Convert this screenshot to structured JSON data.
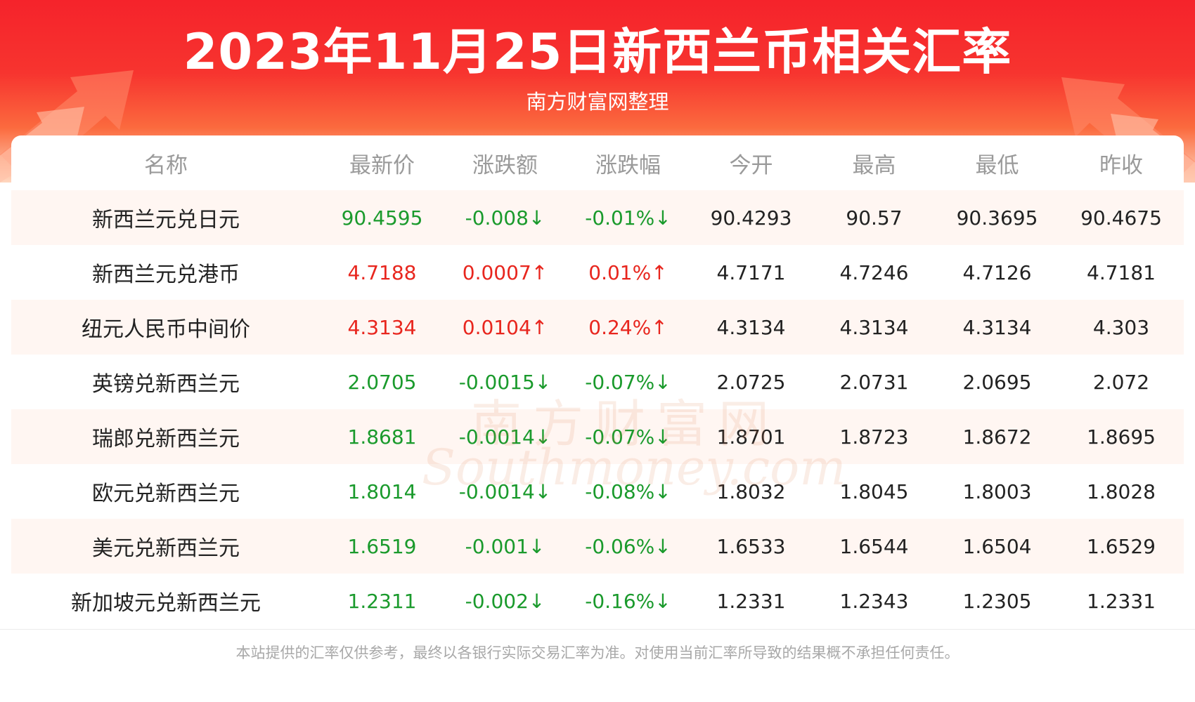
{
  "header": {
    "title": "2023年11月25日新西兰币相关汇率",
    "subtitle": "南方财富网整理"
  },
  "table": {
    "columns": [
      "名称",
      "最新价",
      "涨跌额",
      "涨跌幅",
      "今开",
      "最高",
      "最低",
      "昨收"
    ],
    "rows": [
      {
        "name": "新西兰元兑日元",
        "latest": "90.4595",
        "change": "-0.008↓",
        "pct": "-0.01%↓",
        "open": "90.4293",
        "high": "90.57",
        "low": "90.3695",
        "prev": "90.4675",
        "trend": "down"
      },
      {
        "name": "新西兰元兑港币",
        "latest": "4.7188",
        "change": "0.0007↑",
        "pct": "0.01%↑",
        "open": "4.7171",
        "high": "4.7246",
        "low": "4.7126",
        "prev": "4.7181",
        "trend": "up"
      },
      {
        "name": "纽元人民币中间价",
        "latest": "4.3134",
        "change": "0.0104↑",
        "pct": "0.24%↑",
        "open": "4.3134",
        "high": "4.3134",
        "low": "4.3134",
        "prev": "4.303",
        "trend": "up"
      },
      {
        "name": "英镑兑新西兰元",
        "latest": "2.0705",
        "change": "-0.0015↓",
        "pct": "-0.07%↓",
        "open": "2.0725",
        "high": "2.0731",
        "low": "2.0695",
        "prev": "2.072",
        "trend": "down"
      },
      {
        "name": "瑞郎兑新西兰元",
        "latest": "1.8681",
        "change": "-0.0014↓",
        "pct": "-0.07%↓",
        "open": "1.8701",
        "high": "1.8723",
        "low": "1.8672",
        "prev": "1.8695",
        "trend": "down"
      },
      {
        "name": "欧元兑新西兰元",
        "latest": "1.8014",
        "change": "-0.0014↓",
        "pct": "-0.08%↓",
        "open": "1.8032",
        "high": "1.8045",
        "low": "1.8003",
        "prev": "1.8028",
        "trend": "down"
      },
      {
        "name": "美元兑新西兰元",
        "latest": "1.6519",
        "change": "-0.001↓",
        "pct": "-0.06%↓",
        "open": "1.6533",
        "high": "1.6544",
        "low": "1.6504",
        "prev": "1.6529",
        "trend": "down"
      },
      {
        "name": "新加坡元兑新西兰元",
        "latest": "1.2311",
        "change": "-0.002↓",
        "pct": "-0.16%↓",
        "open": "1.2331",
        "high": "1.2343",
        "low": "1.2305",
        "prev": "1.2331",
        "trend": "down"
      }
    ]
  },
  "watermark": {
    "cn": "南方财富网",
    "en": "Southmoney.com"
  },
  "footer": {
    "disclaimer": "本站提供的汇率仅供参考，最终以各银行实际交易汇率为准。对使用当前汇率所导致的结果概不承担任何责任。"
  },
  "colors": {
    "up": "#e8261e",
    "down": "#1a9a2c",
    "header_red": "#f5232b"
  }
}
